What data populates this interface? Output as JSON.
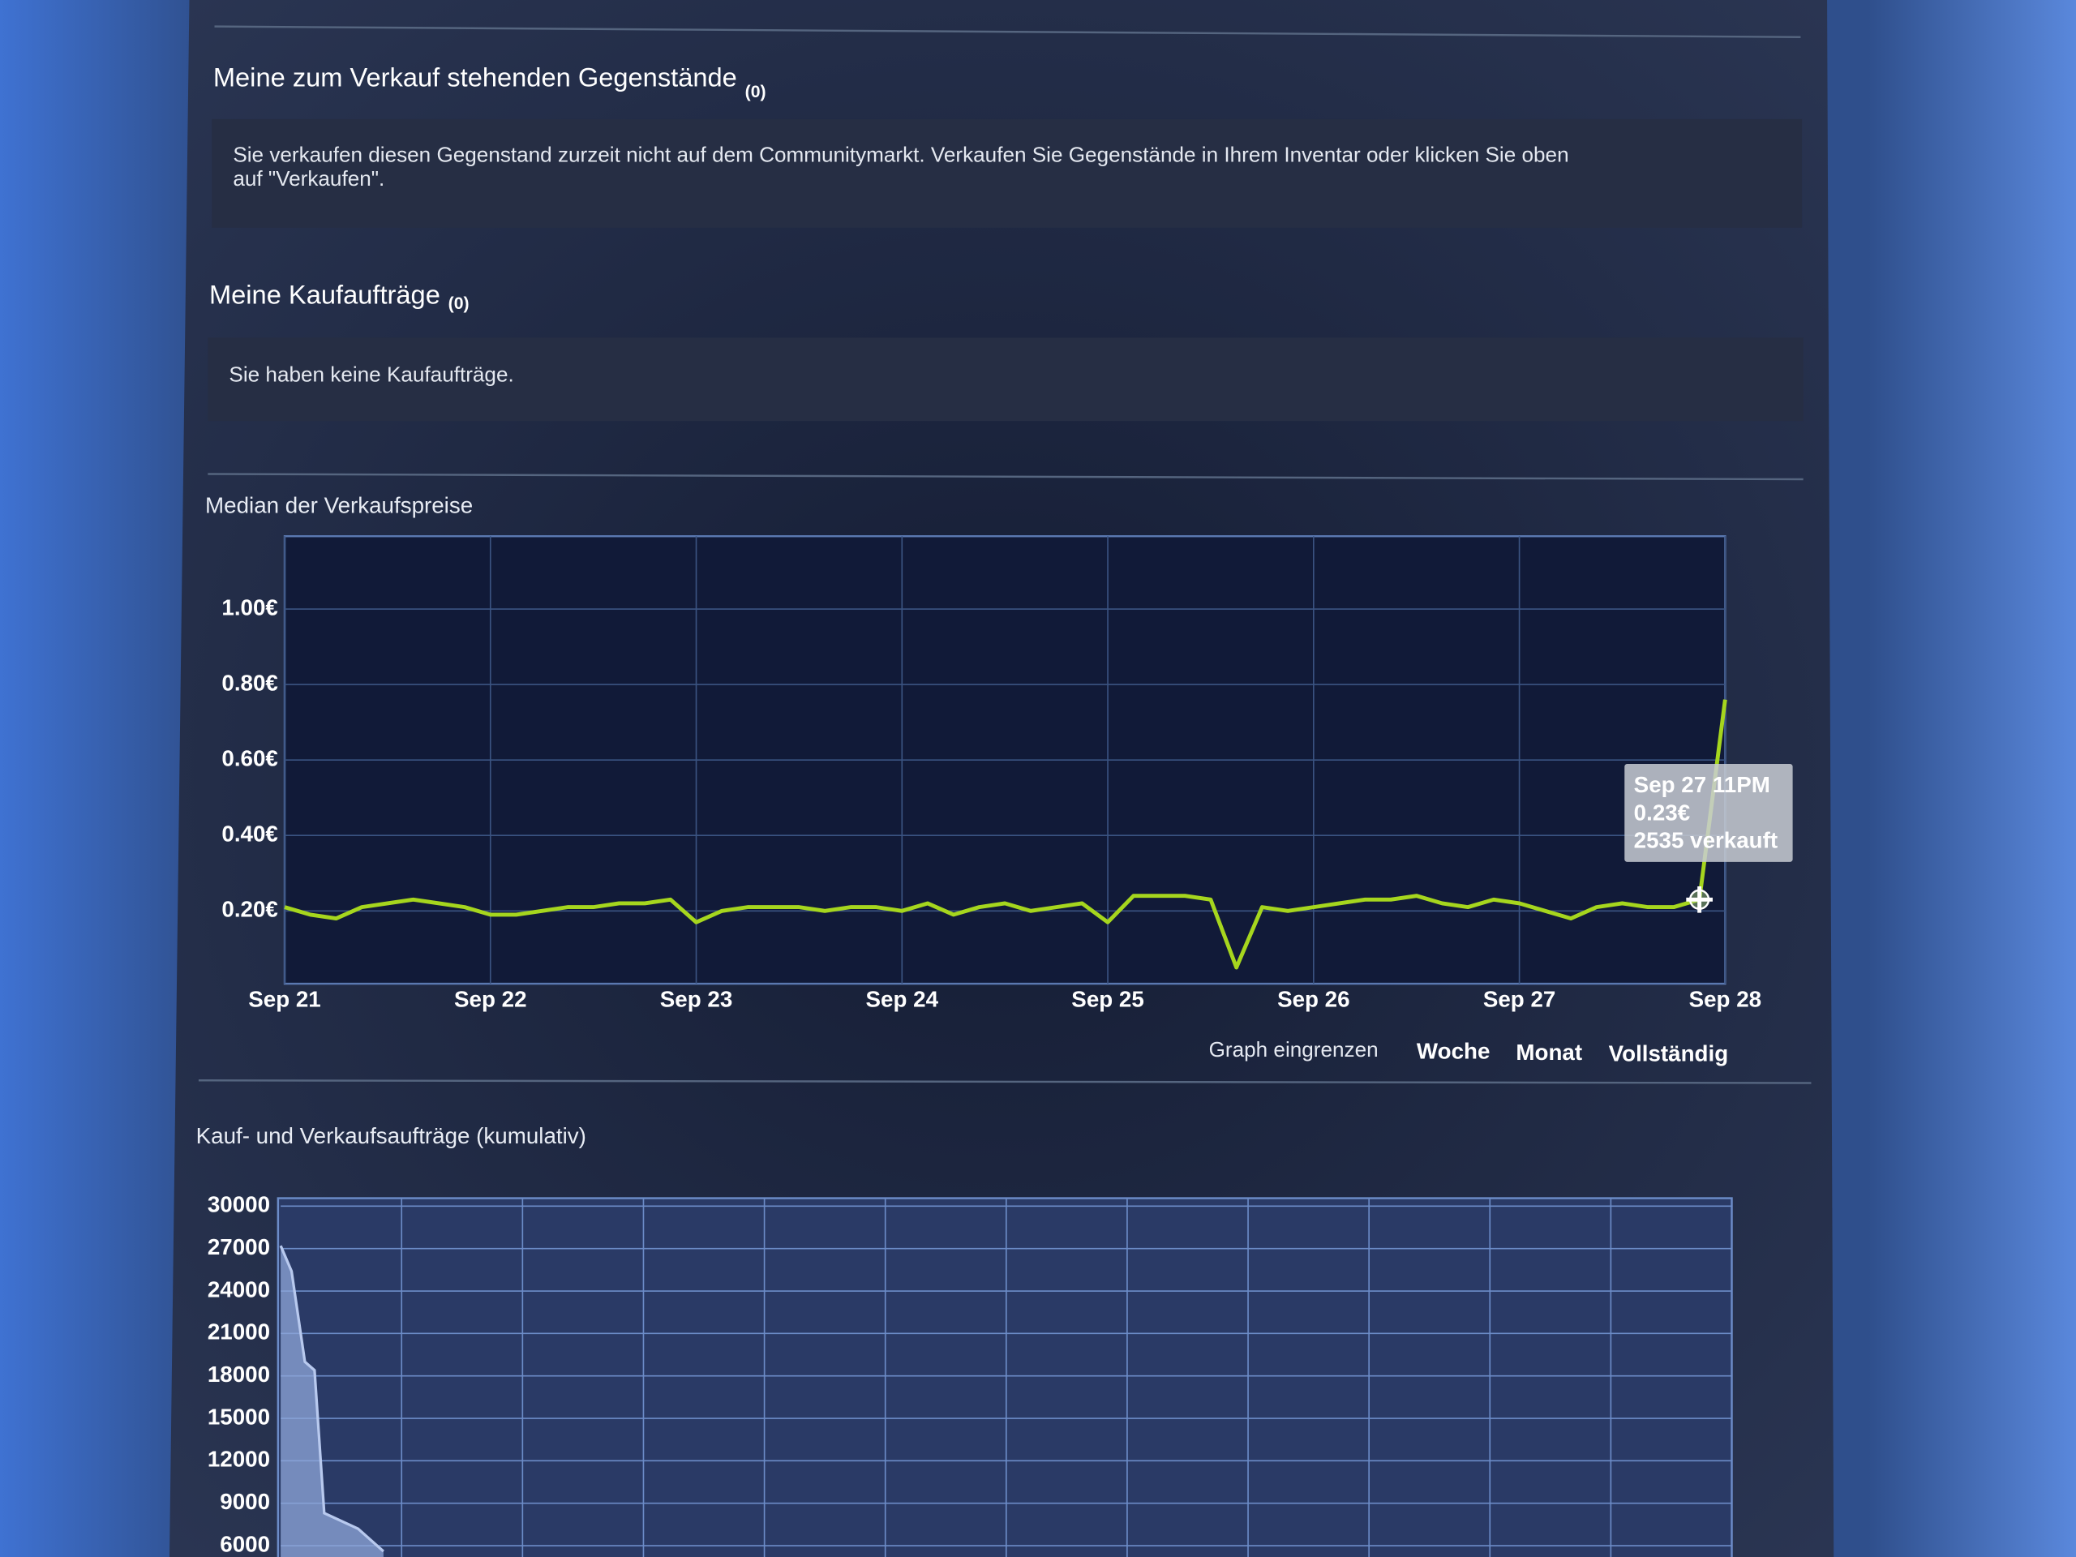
{
  "sections": [
    {
      "title": "Meine zum Verkauf stehenden Gegenstände",
      "count": "(0)",
      "lines": [
        "Sie verkaufen diesen Gegenstand zurzeit nicht auf dem Communitymarkt. Verkaufen Sie Gegenstände in Ihrem Inventar oder klicken Sie oben",
        "auf \"Verkaufen\"."
      ]
    },
    {
      "title": "Meine Kaufaufträge",
      "count": "(0)",
      "lines": [
        "Sie haben keine Kaufaufträge."
      ]
    }
  ],
  "range_controls": {
    "label": "Graph eingrenzen",
    "options": [
      "Woche",
      "Monat",
      "Vollständig"
    ]
  },
  "chart_data": [
    {
      "type": "line",
      "title": "Median der Verkaufspreise",
      "color": "#a6d61e",
      "values": [
        0.21,
        0.19,
        0.18,
        0.21,
        0.22,
        0.23,
        0.22,
        0.21,
        0.19,
        0.19,
        0.2,
        0.21,
        0.21,
        0.22,
        0.22,
        0.23,
        0.17,
        0.2,
        0.21,
        0.21,
        0.21,
        0.2,
        0.21,
        0.21,
        0.2,
        0.22,
        0.19,
        0.21,
        0.22,
        0.2,
        0.21,
        0.22,
        0.17,
        0.24,
        0.24,
        0.24,
        0.23,
        0.05,
        0.21,
        0.2,
        0.21,
        0.22,
        0.23,
        0.23,
        0.24,
        0.22,
        0.21,
        0.23,
        0.22,
        0.2,
        0.18,
        0.21,
        0.22,
        0.21,
        0.21,
        0.23,
        0.76
      ],
      "xlim": [
        0,
        56
      ],
      "xticks": [
        {
          "value": 0,
          "label": "Sep 21"
        },
        {
          "value": 8,
          "label": "Sep 22"
        },
        {
          "value": 16,
          "label": "Sep 23"
        },
        {
          "value": 24,
          "label": "Sep 24"
        },
        {
          "value": 32,
          "label": "Sep 25"
        },
        {
          "value": 40,
          "label": "Sep 26"
        },
        {
          "value": 48,
          "label": "Sep 27"
        },
        {
          "value": 56,
          "label": "Sep 28"
        }
      ],
      "ylim": [
        0,
        1.2
      ],
      "yticks": [
        {
          "value": 0.2,
          "label": "0.20€"
        },
        {
          "value": 0.4,
          "label": "0.40€"
        },
        {
          "value": 0.6,
          "label": "0.60€"
        },
        {
          "value": 0.8,
          "label": "0.80€"
        },
        {
          "value": 1.0,
          "label": "1.00€"
        }
      ],
      "grid": true,
      "tooltip": {
        "index": 55,
        "lines": [
          "Sep 27 11PM",
          "0.23€",
          "2535 verkauft"
        ]
      }
    },
    {
      "type": "area",
      "title": "Kauf- und Verkaufsaufträge (kumulativ)",
      "color": "#8fa7d9",
      "x": [
        0,
        0.09,
        0.2,
        0.28,
        0.36,
        0.64,
        0.85
      ],
      "values": [
        27200,
        25400,
        19000,
        18400,
        8300,
        7200,
        5600
      ],
      "xlim": [
        0,
        12
      ],
      "ylim": [
        5200,
        30000
      ],
      "yticks": [
        6000,
        9000,
        12000,
        15000,
        18000,
        21000,
        24000,
        27000,
        30000
      ],
      "grid": true
    }
  ]
}
